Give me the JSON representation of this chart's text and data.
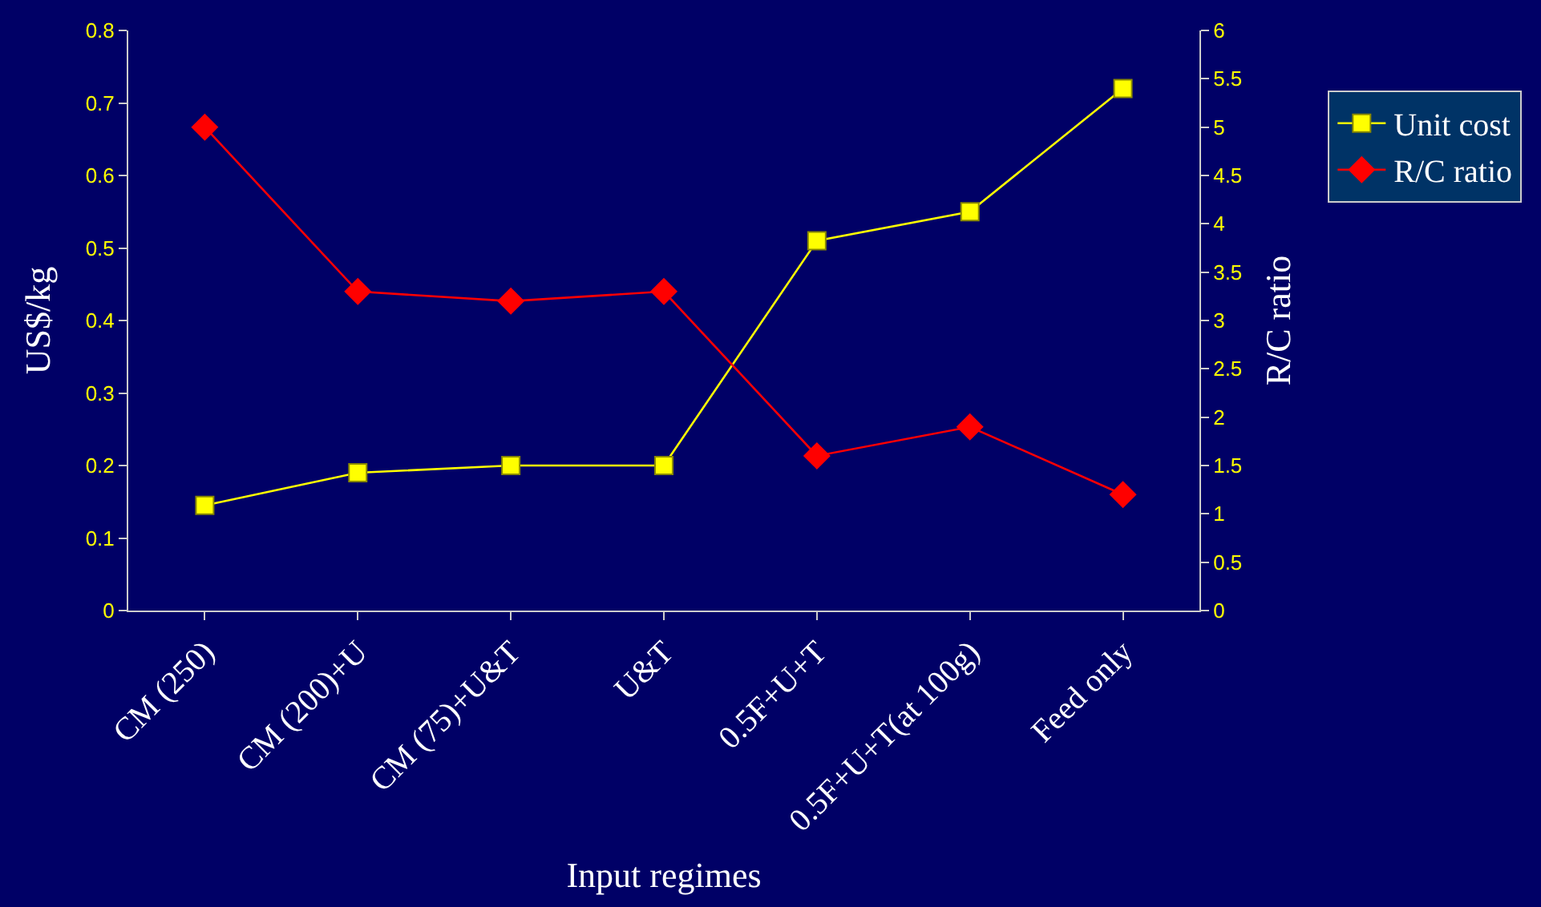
{
  "chart_data": {
    "type": "line",
    "categories": [
      "CM (250)",
      "CM (200)+U",
      "CM (75)+U&T",
      "U&T",
      "0.5F+U+T",
      "0.5F+U+T(at 100g)",
      "Feed only"
    ],
    "series": [
      {
        "name": "Unit cost",
        "color": "#ffff00",
        "marker": "square",
        "values": [
          0.145,
          0.19,
          0.2,
          0.2,
          0.51,
          0.55,
          0.72
        ]
      },
      {
        "name": "R/C ratio",
        "color": "#ff0000",
        "marker": "diamond",
        "axis": "y2",
        "values": [
          5.0,
          3.3,
          3.2,
          3.3,
          1.6,
          1.9,
          1.2
        ]
      }
    ],
    "xlabel": "Input regimes",
    "ylabel": "US$/kg",
    "y2label": "R/C ratio",
    "ylim": [
      0,
      0.8
    ],
    "yticks": [
      0,
      0.1,
      0.2,
      0.3,
      0.4,
      0.5,
      0.6,
      0.7,
      0.8
    ],
    "y2lim": [
      0,
      6
    ],
    "y2ticks": [
      0,
      0.5,
      1,
      1.5,
      2,
      2.5,
      3,
      3.5,
      4,
      4.5,
      5,
      5.5,
      6
    ],
    "grid": false,
    "legend": "right",
    "line_style": "solid"
  }
}
